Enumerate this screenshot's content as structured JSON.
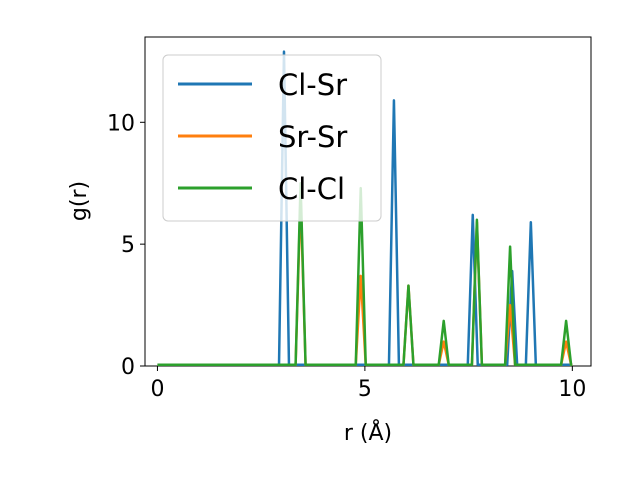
{
  "chart_data": {
    "type": "line",
    "xlabel": "r (Å)",
    "ylabel": "g(r)",
    "xlim": [
      -0.3,
      10.45
    ],
    "ylim": [
      0,
      13.5
    ],
    "xticks": [
      0,
      5,
      10
    ],
    "yticks": [
      0,
      5,
      10
    ],
    "grid": false,
    "legend_position": "top-left",
    "baseline": 0.05,
    "series": [
      {
        "name": "Cl-Sr",
        "color": "#1f77b4",
        "peaks": [
          [
            3.05,
            12.9
          ],
          [
            5.7,
            10.9
          ],
          [
            7.6,
            6.2
          ],
          [
            8.55,
            3.9
          ],
          [
            9.0,
            5.9
          ]
        ]
      },
      {
        "name": "Sr-Sr",
        "color": "#ff7f0e",
        "peaks": [
          [
            3.45,
            7.0
          ],
          [
            4.9,
            3.7
          ],
          [
            6.05,
            3.3
          ],
          [
            6.9,
            1.0
          ],
          [
            7.7,
            5.9
          ],
          [
            8.5,
            2.5
          ],
          [
            9.85,
            1.0
          ]
        ]
      },
      {
        "name": "Cl-Cl",
        "color": "#2ca02c",
        "peaks": [
          [
            3.45,
            7.5
          ],
          [
            4.9,
            7.3
          ],
          [
            6.05,
            3.3
          ],
          [
            6.9,
            1.85
          ],
          [
            7.7,
            6.0
          ],
          [
            8.5,
            4.9
          ],
          [
            9.85,
            1.85
          ]
        ]
      }
    ]
  }
}
